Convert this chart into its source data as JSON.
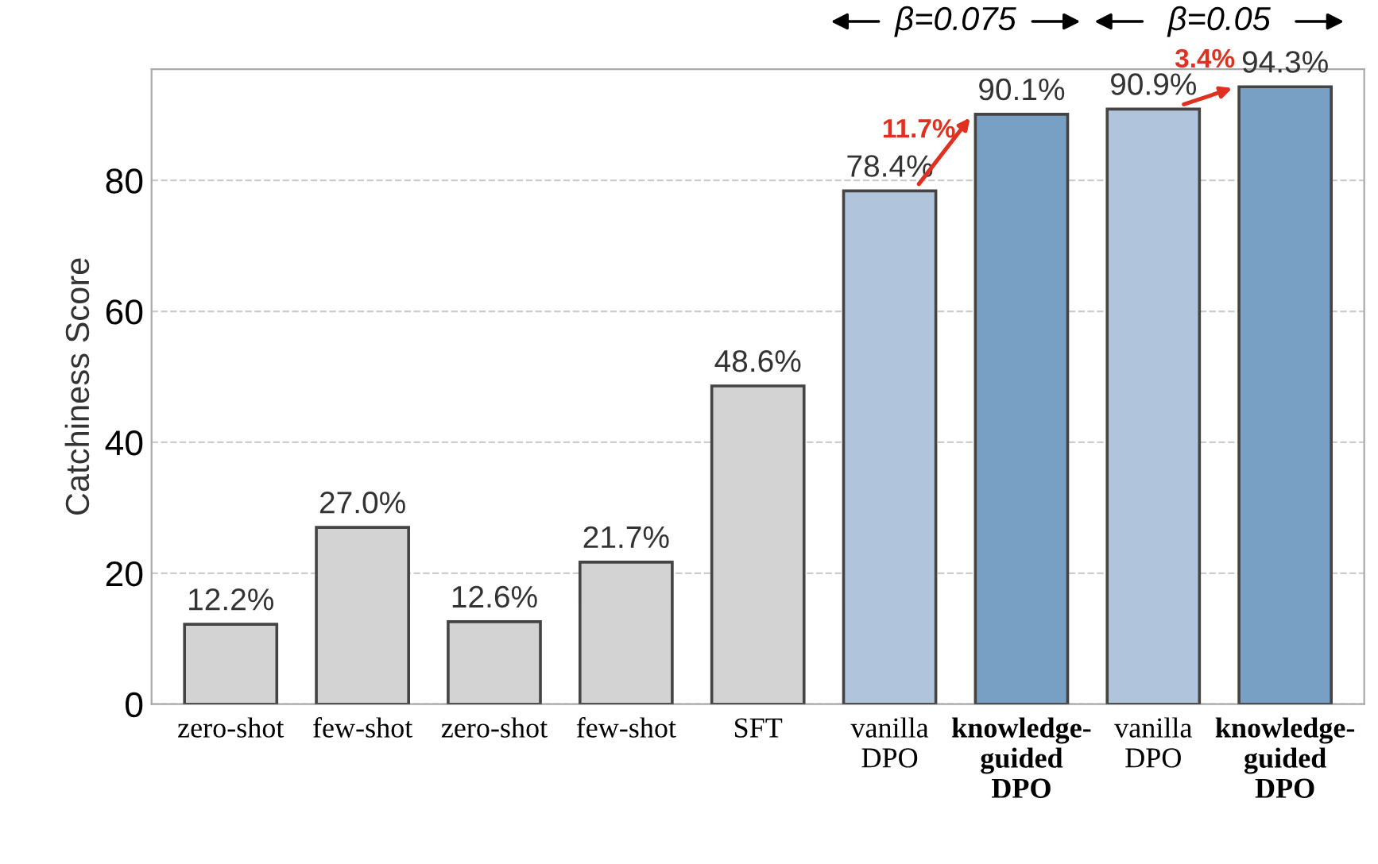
{
  "chart_data": {
    "type": "bar",
    "ylabel": "Catchiness Score",
    "categories": [
      "zero-shot",
      "few-shot",
      "zero-shot",
      "few-shot",
      "SFT",
      "vanilla\nDPO",
      "knowledge-\nguided\nDPO",
      "vanilla\nDPO",
      "knowledge-\nguided\nDPO"
    ],
    "values": [
      12.2,
      27.0,
      12.6,
      21.7,
      48.6,
      78.4,
      90.1,
      90.9,
      94.3
    ],
    "value_labels": [
      "12.2%",
      "27.0%",
      "12.6%",
      "21.7%",
      "48.6%",
      "78.4%",
      "90.1%",
      "90.9%",
      "94.3%"
    ],
    "colors": [
      "#d3d3d3",
      "#d3d3d3",
      "#d3d3d3",
      "#d3d3d3",
      "#d3d3d3",
      "#b0c4dc",
      "#789fc4",
      "#b0c4dc",
      "#789fc4"
    ],
    "ylim": [
      0,
      97
    ],
    "yticks": [
      0,
      20,
      40,
      60,
      80
    ],
    "grid": "y",
    "annotations": [
      "11.7%",
      "3.4%",
      "β=0.075",
      "β=0.05"
    ]
  }
}
